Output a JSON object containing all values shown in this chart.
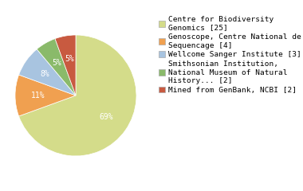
{
  "slices": [
    25,
    4,
    3,
    2,
    2
  ],
  "labels": [
    "Centre for Biodiversity\nGenomics [25]",
    "Genoscope, Centre National de\nSequencage [4]",
    "Wellcome Sanger Institute [3]",
    "Smithsonian Institution,\nNational Museum of Natural\nHistory... [2]",
    "Mined from GenBank, NCBI [2]"
  ],
  "colors": [
    "#d4dc8a",
    "#f0a050",
    "#a8c4e0",
    "#8aba6a",
    "#c85a40"
  ],
  "pct_labels": [
    "69%",
    "11%",
    "8%",
    "5%",
    "5%"
  ],
  "startangle": 90,
  "background_color": "#ffffff",
  "text_color": "#ffffff",
  "pct_font_size": 7.0,
  "legend_font_size": 6.8
}
